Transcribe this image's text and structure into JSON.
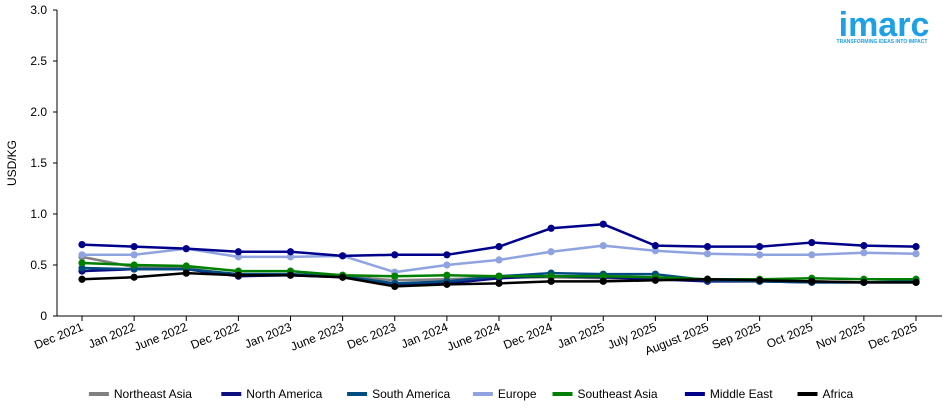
{
  "logo": {
    "brand": "imarc",
    "tagline": "TRANSFORMING IDEAS INTO IMPACT",
    "color": "#1ea0e6"
  },
  "chart_data": {
    "type": "line",
    "title": "",
    "xlabel": "",
    "ylabel": "USD/KG",
    "ylim": [
      0,
      3
    ],
    "yticks": [
      "0",
      "0.5",
      "1.0",
      "1.5",
      "2.0",
      "2.5",
      "3.0"
    ],
    "grid": false,
    "legend_position": "bottom",
    "categories": [
      "Dec 2021",
      "Jan 2022",
      "June 2022",
      "Dec 2022",
      "Jan 2023",
      "June 2023",
      "Dec 2023",
      "Jan 2024",
      "June 2024",
      "Dec 2024",
      "Jan 2025",
      "July 2025",
      "August 2025",
      "Sep 2025",
      "Oct 2025",
      "Nov 2025",
      "Dec 2025"
    ],
    "series": [
      {
        "name": "Northeast Asia",
        "color": "#808080",
        "values": [
          0.58,
          0.48,
          0.47,
          0.4,
          0.4,
          0.39,
          0.35,
          0.36,
          0.38,
          0.38,
          0.37,
          0.36,
          0.36,
          0.35,
          0.34,
          0.33,
          0.34
        ]
      },
      {
        "name": "North America",
        "color": "#0d0d82",
        "values": [
          0.44,
          0.46,
          0.46,
          0.39,
          0.4,
          0.38,
          0.3,
          0.32,
          0.37,
          0.39,
          0.38,
          0.36,
          0.34,
          0.34,
          0.33,
          0.33,
          0.33
        ]
      },
      {
        "name": "South America",
        "color": "#004c80",
        "values": [
          0.47,
          0.46,
          0.46,
          0.41,
          0.41,
          0.39,
          0.32,
          0.34,
          0.39,
          0.42,
          0.41,
          0.41,
          0.35,
          0.34,
          0.33,
          0.33,
          0.34
        ]
      },
      {
        "name": "Europe",
        "color": "#8fa3e0",
        "values": [
          0.6,
          0.6,
          0.66,
          0.58,
          0.58,
          0.59,
          0.43,
          0.5,
          0.55,
          0.63,
          0.69,
          0.64,
          0.61,
          0.6,
          0.6,
          0.62,
          0.61
        ]
      },
      {
        "name": "Southeast Asia",
        "color": "#008000",
        "values": [
          0.52,
          0.5,
          0.49,
          0.44,
          0.44,
          0.4,
          0.39,
          0.4,
          0.39,
          0.39,
          0.39,
          0.38,
          0.36,
          0.36,
          0.37,
          0.36,
          0.36
        ]
      },
      {
        "name": "Middle East",
        "color": "#00008b",
        "values": [
          0.7,
          0.68,
          0.66,
          0.63,
          0.63,
          0.59,
          0.6,
          0.6,
          0.68,
          0.86,
          0.9,
          0.69,
          0.68,
          0.68,
          0.72,
          0.69,
          0.68
        ]
      },
      {
        "name": "Africa",
        "color": "#000000",
        "values": [
          0.36,
          0.38,
          0.42,
          0.4,
          0.4,
          0.38,
          0.29,
          0.31,
          0.32,
          0.34,
          0.34,
          0.35,
          0.36,
          0.35,
          0.34,
          0.33,
          0.33
        ]
      }
    ]
  }
}
